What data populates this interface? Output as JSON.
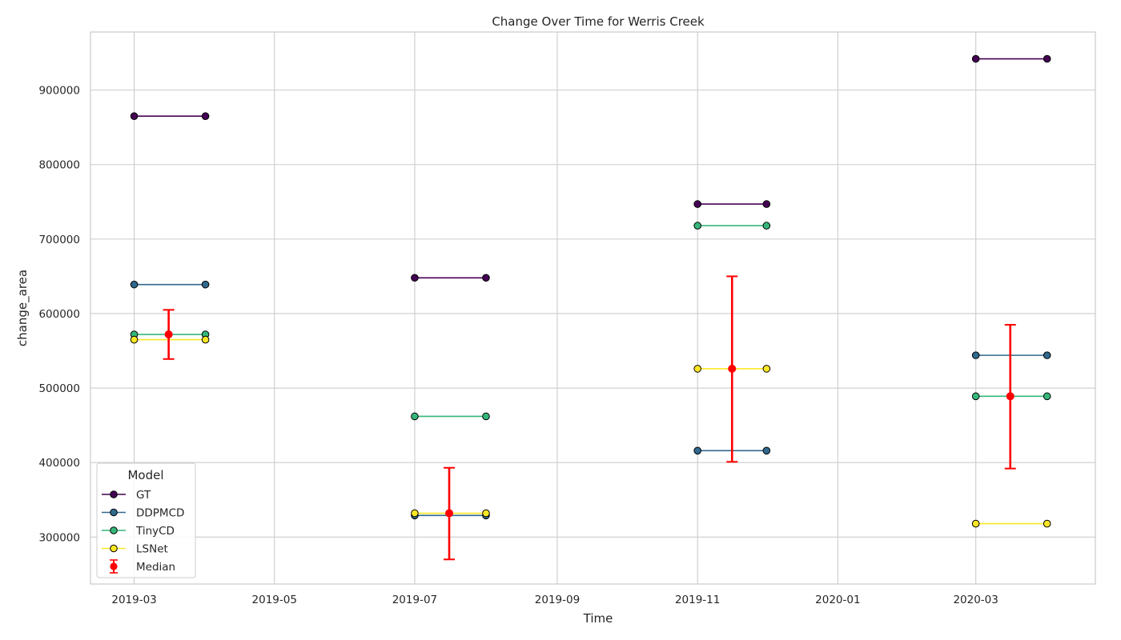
{
  "chart_data": {
    "type": "line",
    "title": "Change Over Time for Werris Creek",
    "xlabel": "Time",
    "ylabel": "change_area",
    "x_ticks": [
      "2019-03",
      "2019-05",
      "2019-07",
      "2019-09",
      "2019-11",
      "2020-01",
      "2020-03"
    ],
    "y_ticks": [
      300000,
      400000,
      500000,
      600000,
      700000,
      800000,
      900000
    ],
    "ylim": [
      237000,
      978000
    ],
    "xlim": [
      "2019-02-10",
      "2020-04-22"
    ],
    "grid": true,
    "legend": {
      "title": "Model",
      "placement": "lower-left",
      "entries": [
        "GT",
        "DDPMCD",
        "TinyCD",
        "LSNet",
        "Median"
      ]
    },
    "series": [
      {
        "name": "GT",
        "color": "#440154",
        "segments": [
          {
            "x": [
              "2019-03-01",
              "2019-04-01"
            ],
            "y": [
              865000,
              865000
            ]
          },
          {
            "x": [
              "2019-07-01",
              "2019-08-01"
            ],
            "y": [
              648000,
              648000
            ]
          },
          {
            "x": [
              "2019-11-01",
              "2019-12-01"
            ],
            "y": [
              747000,
              747000
            ]
          },
          {
            "x": [
              "2020-03-01",
              "2020-04-01"
            ],
            "y": [
              942000,
              942000
            ]
          }
        ]
      },
      {
        "name": "DDPMCD",
        "color": "#31688e",
        "segments": [
          {
            "x": [
              "2019-03-01",
              "2019-04-01"
            ],
            "y": [
              639000,
              639000
            ]
          },
          {
            "x": [
              "2019-07-01",
              "2019-08-01"
            ],
            "y": [
              329000,
              329000
            ]
          },
          {
            "x": [
              "2019-11-01",
              "2019-12-01"
            ],
            "y": [
              416000,
              416000
            ]
          },
          {
            "x": [
              "2020-03-01",
              "2020-04-01"
            ],
            "y": [
              544000,
              544000
            ]
          }
        ]
      },
      {
        "name": "TinyCD",
        "color": "#35b779",
        "segments": [
          {
            "x": [
              "2019-03-01",
              "2019-04-01"
            ],
            "y": [
              572000,
              572000
            ]
          },
          {
            "x": [
              "2019-07-01",
              "2019-08-01"
            ],
            "y": [
              462000,
              462000
            ]
          },
          {
            "x": [
              "2019-11-01",
              "2019-12-01"
            ],
            "y": [
              718000,
              718000
            ]
          },
          {
            "x": [
              "2020-03-01",
              "2020-04-01"
            ],
            "y": [
              489000,
              489000
            ]
          }
        ]
      },
      {
        "name": "LSNet",
        "color": "#fde725",
        "segments": [
          {
            "x": [
              "2019-03-01",
              "2019-04-01"
            ],
            "y": [
              565000,
              565000
            ]
          },
          {
            "x": [
              "2019-07-01",
              "2019-08-01"
            ],
            "y": [
              332000,
              332000
            ]
          },
          {
            "x": [
              "2019-11-01",
              "2019-12-01"
            ],
            "y": [
              526000,
              526000
            ]
          },
          {
            "x": [
              "2020-03-01",
              "2020-04-01"
            ],
            "y": [
              318000,
              318000
            ]
          }
        ]
      }
    ],
    "median": {
      "name": "Median",
      "color": "#ff0000",
      "points": [
        {
          "x": "2019-03-16",
          "y": 572000,
          "low": 539000,
          "high": 605000
        },
        {
          "x": "2019-07-16",
          "y": 332000,
          "low": 270000,
          "high": 393000
        },
        {
          "x": "2019-11-16",
          "y": 526000,
          "low": 401000,
          "high": 650000
        },
        {
          "x": "2020-03-16",
          "y": 489000,
          "low": 392000,
          "high": 585000
        }
      ]
    }
  }
}
